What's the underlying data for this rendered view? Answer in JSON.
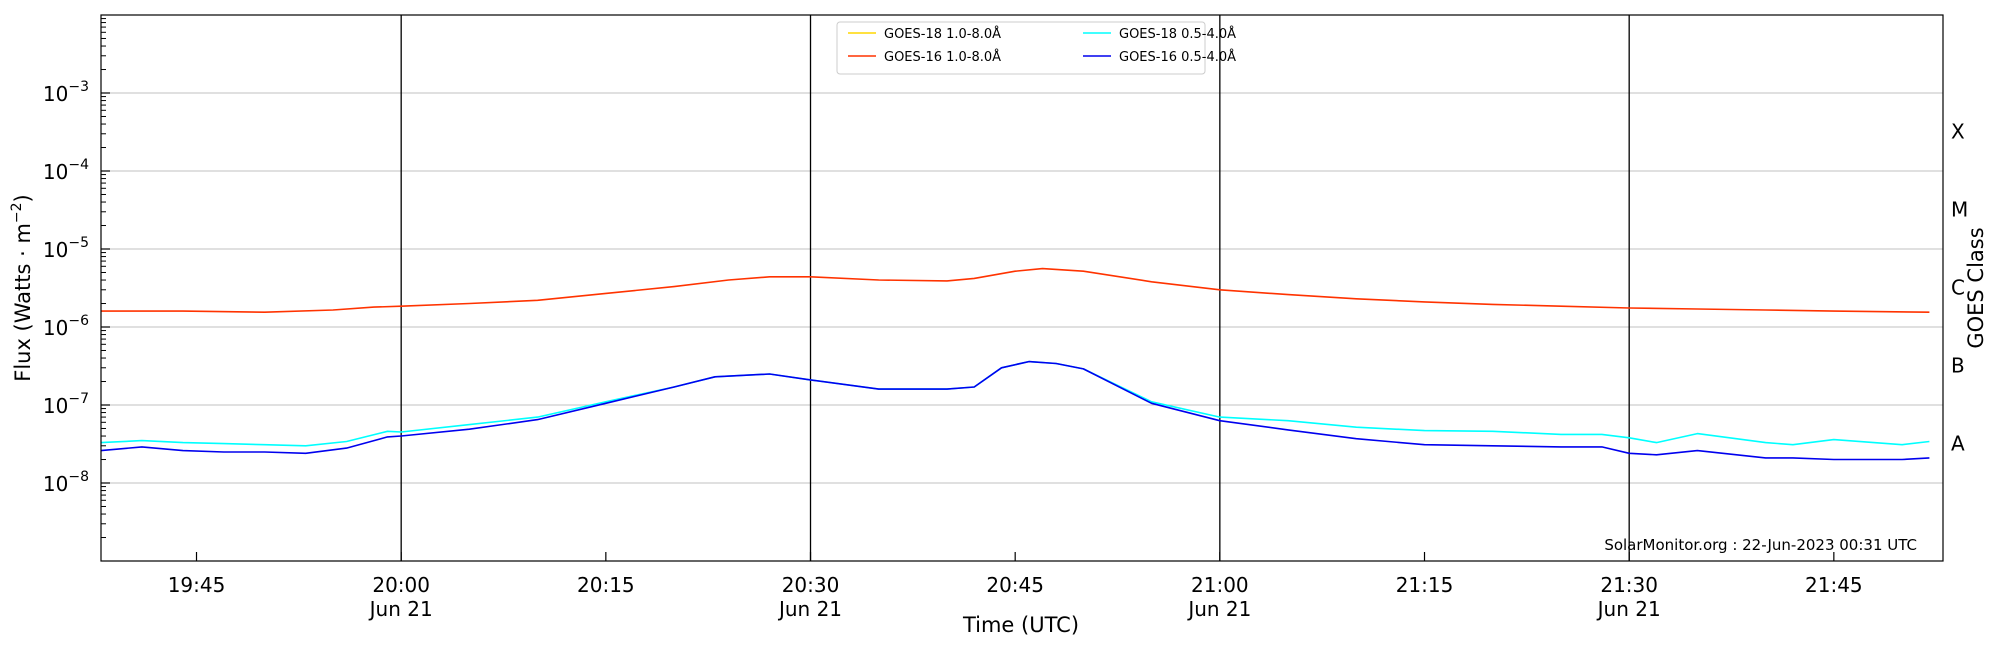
{
  "chart_data": {
    "type": "line",
    "xlabel": "Time (UTC)",
    "ylabel": "Flux (Watts · m",
    "ylabel_sup": "−2",
    "ylabel_end": ")",
    "y2label": "GOES Class",
    "yscale": "log",
    "ylim": [
      1e-09,
      0.01
    ],
    "xlim": [
      "2023-06-21 19:38",
      "2023-06-21 21:53"
    ],
    "grid": "horizontal",
    "legend_placement": "top-center",
    "credit": "SolarMonitor.org : 22-Jun-2023 00:31 UTC",
    "y_ticks": [
      {
        "value": 1e-08,
        "base": "10",
        "exp": "−8"
      },
      {
        "value": 1e-07,
        "base": "10",
        "exp": "−7"
      },
      {
        "value": 1e-06,
        "base": "10",
        "exp": "−6"
      },
      {
        "value": 1e-05,
        "base": "10",
        "exp": "−5"
      },
      {
        "value": 0.0001,
        "base": "10",
        "exp": "−4"
      },
      {
        "value": 0.001,
        "base": "10",
        "exp": "−3"
      }
    ],
    "x_ticks": [
      {
        "time": "19:45",
        "label": "19:45",
        "sub": ""
      },
      {
        "time": "20:00",
        "label": "20:00",
        "sub": "Jun 21"
      },
      {
        "time": "20:15",
        "label": "20:15",
        "sub": ""
      },
      {
        "time": "20:30",
        "label": "20:30",
        "sub": "Jun 21"
      },
      {
        "time": "20:45",
        "label": "20:45",
        "sub": ""
      },
      {
        "time": "21:00",
        "label": "21:00",
        "sub": "Jun 21"
      },
      {
        "time": "21:15",
        "label": "21:15",
        "sub": ""
      },
      {
        "time": "21:30",
        "label": "21:30",
        "sub": "Jun 21"
      },
      {
        "time": "21:45",
        "label": "21:45",
        "sub": ""
      }
    ],
    "vertical_lines": [
      "20:00",
      "20:30",
      "21:00",
      "21:30"
    ],
    "goes_classes": [
      {
        "label": "A",
        "value": 3.2e-08
      },
      {
        "label": "B",
        "value": 3.2e-07
      },
      {
        "label": "C",
        "value": 3.2e-06
      },
      {
        "label": "M",
        "value": 3.2e-05
      },
      {
        "label": "X",
        "value": 0.00032
      }
    ],
    "series": [
      {
        "name": "GOES-18 1.0-8.0Å",
        "color": "#ffd700",
        "times": [],
        "values": []
      },
      {
        "name": "GOES-16 1.0-8.0Å",
        "color": "#ff3300",
        "times": [
          "19:38",
          "19:44",
          "19:50",
          "19:55",
          "19:58",
          "20:00",
          "20:05",
          "20:10",
          "20:15",
          "20:20",
          "20:24",
          "20:27",
          "20:30",
          "20:35",
          "20:40",
          "20:42",
          "20:45",
          "20:47",
          "20:50",
          "20:55",
          "21:00",
          "21:05",
          "21:10",
          "21:15",
          "21:20",
          "21:25",
          "21:30",
          "21:35",
          "21:40",
          "21:45",
          "21:52"
        ],
        "values": [
          1.6e-06,
          1.6e-06,
          1.55e-06,
          1.65e-06,
          1.8e-06,
          1.85e-06,
          2e-06,
          2.2e-06,
          2.7e-06,
          3.3e-06,
          4e-06,
          4.4e-06,
          4.4e-06,
          4e-06,
          3.9e-06,
          4.2e-06,
          5.2e-06,
          5.6e-06,
          5.2e-06,
          3.8e-06,
          3e-06,
          2.6e-06,
          2.3e-06,
          2.1e-06,
          1.95e-06,
          1.85e-06,
          1.75e-06,
          1.7e-06,
          1.65e-06,
          1.6e-06,
          1.55e-06
        ]
      },
      {
        "name": "GOES-18 0.5-4.0Å",
        "color": "#00ffff",
        "times": [
          "19:38",
          "19:41",
          "19:44",
          "19:47",
          "19:50",
          "19:53",
          "19:56",
          "19:59",
          "20:00",
          "20:05",
          "20:10",
          "20:15",
          "20:20",
          "20:23",
          "20:27",
          "20:30",
          "20:35",
          "20:40",
          "20:42",
          "20:44",
          "20:46",
          "20:48",
          "20:50",
          "20:55",
          "21:00",
          "21:05",
          "21:10",
          "21:15",
          "21:20",
          "21:25",
          "21:28",
          "21:30",
          "21:32",
          "21:35",
          "21:40",
          "21:42",
          "21:45",
          "21:50",
          "21:52"
        ],
        "values": [
          3.3e-08,
          3.5e-08,
          3.3e-08,
          3.2e-08,
          3.1e-08,
          3e-08,
          3.4e-08,
          4.6e-08,
          4.5e-08,
          5.6e-08,
          7e-08,
          1.1e-07,
          1.7e-07,
          2.3e-07,
          2.5e-07,
          2.1e-07,
          1.6e-07,
          1.6e-07,
          1.7e-07,
          3e-07,
          3.6e-07,
          3.4e-07,
          2.9e-07,
          1.1e-07,
          7e-08,
          6.3e-08,
          5.2e-08,
          4.7e-08,
          4.6e-08,
          4.2e-08,
          4.2e-08,
          3.8e-08,
          3.3e-08,
          4.3e-08,
          3.3e-08,
          3.1e-08,
          3.6e-08,
          3.1e-08,
          3.4e-08
        ]
      },
      {
        "name": "GOES-16 0.5-4.0Å",
        "color": "#0000ee",
        "times": [
          "19:38",
          "19:41",
          "19:44",
          "19:47",
          "19:50",
          "19:53",
          "19:56",
          "19:59",
          "20:00",
          "20:05",
          "20:10",
          "20:15",
          "20:20",
          "20:23",
          "20:27",
          "20:30",
          "20:35",
          "20:40",
          "20:42",
          "20:44",
          "20:46",
          "20:48",
          "20:50",
          "20:55",
          "21:00",
          "21:05",
          "21:10",
          "21:15",
          "21:20",
          "21:25",
          "21:28",
          "21:30",
          "21:32",
          "21:35",
          "21:40",
          "21:42",
          "21:45",
          "21:50",
          "21:52"
        ],
        "values": [
          2.6e-08,
          2.9e-08,
          2.6e-08,
          2.5e-08,
          2.5e-08,
          2.4e-08,
          2.8e-08,
          3.9e-08,
          4e-08,
          4.9e-08,
          6.5e-08,
          1.05e-07,
          1.7e-07,
          2.3e-07,
          2.5e-07,
          2.1e-07,
          1.6e-07,
          1.6e-07,
          1.7e-07,
          3e-07,
          3.6e-07,
          3.4e-07,
          2.9e-07,
          1.05e-07,
          6.3e-08,
          4.8e-08,
          3.7e-08,
          3.1e-08,
          3e-08,
          2.9e-08,
          2.9e-08,
          2.4e-08,
          2.3e-08,
          2.6e-08,
          2.1e-08,
          2.1e-08,
          2e-08,
          2e-08,
          2.1e-08
        ]
      }
    ]
  }
}
